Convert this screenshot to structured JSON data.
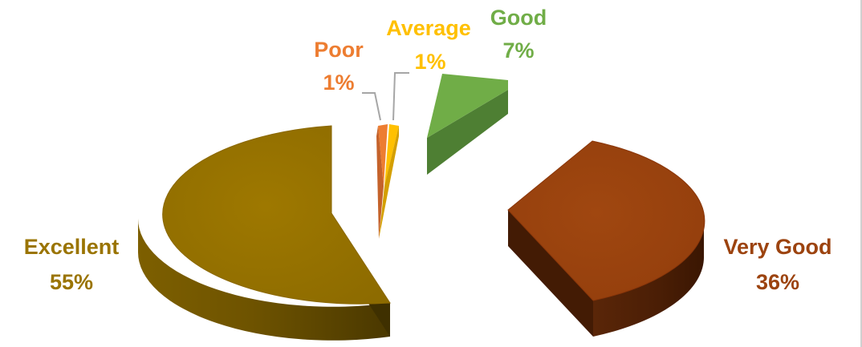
{
  "chart_data": {
    "type": "pie",
    "style": "3d-exploded",
    "title": "",
    "legend": "none",
    "slices": [
      {
        "label": "Excellent",
        "value": 55,
        "display": "55%",
        "color": "#9a7400"
      },
      {
        "label": "Very Good",
        "value": 36,
        "display": "36%",
        "color": "#9c430f"
      },
      {
        "label": "Good",
        "value": 7,
        "display": "7%",
        "color": "#70ad47"
      },
      {
        "label": "Average",
        "value": 1,
        "display": "1%",
        "color": "#ffc000"
      },
      {
        "label": "Poor",
        "value": 1,
        "display": "1%",
        "color": "#ed7d31"
      }
    ]
  }
}
